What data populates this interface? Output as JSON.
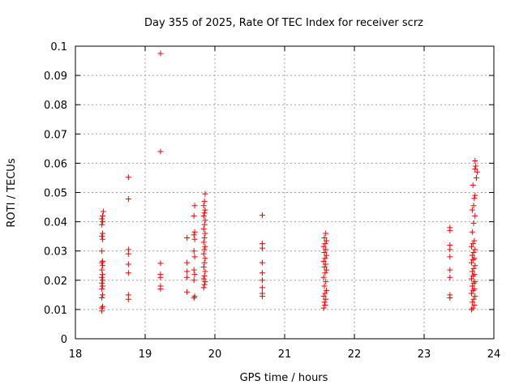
{
  "chart_data": {
    "type": "scatter",
    "title": "Day 355 of 2025, Rate Of TEC Index for receiver scrz",
    "xlabel": "GPS time / hours",
    "ylabel": "ROTI / TECUs",
    "xlim": [
      18,
      24
    ],
    "ylim": [
      0,
      0.1
    ],
    "x_ticks": [
      "18",
      "19",
      "20",
      "21",
      "22",
      "23",
      "24"
    ],
    "y_ticks": [
      "0",
      "0.01",
      "0.02",
      "0.03",
      "0.04",
      "0.05",
      "0.06",
      "0.07",
      "0.08",
      "0.09",
      "0.1"
    ],
    "grid": true,
    "marker": "plus",
    "colors": {
      "points": "#ff0000",
      "grid": "#a0a0a0",
      "axes": "#000000"
    },
    "points": [
      [
        18.38,
        0.0095
      ],
      [
        18.38,
        0.0105
      ],
      [
        18.39,
        0.011
      ],
      [
        18.38,
        0.014
      ],
      [
        18.39,
        0.015
      ],
      [
        18.38,
        0.017
      ],
      [
        18.39,
        0.018
      ],
      [
        18.38,
        0.019
      ],
      [
        18.39,
        0.02
      ],
      [
        18.38,
        0.021
      ],
      [
        18.39,
        0.022
      ],
      [
        18.38,
        0.0235
      ],
      [
        18.39,
        0.025
      ],
      [
        18.38,
        0.026
      ],
      [
        18.39,
        0.0265
      ],
      [
        18.38,
        0.03
      ],
      [
        18.39,
        0.034
      ],
      [
        18.38,
        0.035
      ],
      [
        18.39,
        0.036
      ],
      [
        18.38,
        0.039
      ],
      [
        18.39,
        0.04
      ],
      [
        18.38,
        0.041
      ],
      [
        18.39,
        0.042
      ],
      [
        18.4,
        0.0435
      ],
      [
        18.76,
        0.0135
      ],
      [
        18.76,
        0.015
      ],
      [
        18.76,
        0.0225
      ],
      [
        18.76,
        0.0255
      ],
      [
        18.76,
        0.029
      ],
      [
        18.76,
        0.0305
      ],
      [
        18.76,
        0.0478
      ],
      [
        18.76,
        0.0552
      ],
      [
        19.22,
        0.017
      ],
      [
        19.22,
        0.018
      ],
      [
        19.22,
        0.021
      ],
      [
        19.22,
        0.022
      ],
      [
        19.22,
        0.0258
      ],
      [
        19.22,
        0.064
      ],
      [
        19.22,
        0.0975
      ],
      [
        19.6,
        0.016
      ],
      [
        19.6,
        0.021
      ],
      [
        19.6,
        0.023
      ],
      [
        19.6,
        0.026
      ],
      [
        19.6,
        0.0345
      ],
      [
        19.7,
        0.014
      ],
      [
        19.71,
        0.0145
      ],
      [
        19.7,
        0.02
      ],
      [
        19.71,
        0.022
      ],
      [
        19.7,
        0.0235
      ],
      [
        19.71,
        0.028
      ],
      [
        19.7,
        0.03
      ],
      [
        19.71,
        0.034
      ],
      [
        19.7,
        0.0355
      ],
      [
        19.71,
        0.0365
      ],
      [
        19.7,
        0.042
      ],
      [
        19.71,
        0.0455
      ],
      [
        19.84,
        0.0175
      ],
      [
        19.85,
        0.0185
      ],
      [
        19.86,
        0.0195
      ],
      [
        19.84,
        0.0205
      ],
      [
        19.85,
        0.0215
      ],
      [
        19.86,
        0.023
      ],
      [
        19.84,
        0.0245
      ],
      [
        19.85,
        0.026
      ],
      [
        19.86,
        0.0275
      ],
      [
        19.84,
        0.029
      ],
      [
        19.85,
        0.0305
      ],
      [
        19.86,
        0.0315
      ],
      [
        19.84,
        0.033
      ],
      [
        19.85,
        0.0345
      ],
      [
        19.86,
        0.036
      ],
      [
        19.84,
        0.0375
      ],
      [
        19.85,
        0.039
      ],
      [
        19.86,
        0.0405
      ],
      [
        19.84,
        0.042
      ],
      [
        19.85,
        0.043
      ],
      [
        19.86,
        0.044
      ],
      [
        19.84,
        0.0455
      ],
      [
        19.85,
        0.047
      ],
      [
        19.86,
        0.0495
      ],
      [
        20.68,
        0.0145
      ],
      [
        20.68,
        0.0155
      ],
      [
        20.68,
        0.0175
      ],
      [
        20.68,
        0.02
      ],
      [
        20.68,
        0.0225
      ],
      [
        20.68,
        0.026
      ],
      [
        20.68,
        0.031
      ],
      [
        20.68,
        0.0325
      ],
      [
        20.68,
        0.0422
      ],
      [
        21.56,
        0.0105
      ],
      [
        21.58,
        0.0115
      ],
      [
        21.57,
        0.0125
      ],
      [
        21.59,
        0.0135
      ],
      [
        21.56,
        0.0145
      ],
      [
        21.58,
        0.0155
      ],
      [
        21.6,
        0.0165
      ],
      [
        21.57,
        0.018
      ],
      [
        21.59,
        0.0195
      ],
      [
        21.56,
        0.021
      ],
      [
        21.58,
        0.0225
      ],
      [
        21.6,
        0.0235
      ],
      [
        21.57,
        0.0245
      ],
      [
        21.59,
        0.0255
      ],
      [
        21.56,
        0.0265
      ],
      [
        21.58,
        0.0275
      ],
      [
        21.6,
        0.0285
      ],
      [
        21.57,
        0.0295
      ],
      [
        21.59,
        0.0305
      ],
      [
        21.56,
        0.0315
      ],
      [
        21.58,
        0.0325
      ],
      [
        21.6,
        0.0335
      ],
      [
        21.57,
        0.0345
      ],
      [
        21.59,
        0.036
      ],
      [
        23.37,
        0.014
      ],
      [
        23.37,
        0.015
      ],
      [
        23.37,
        0.021
      ],
      [
        23.37,
        0.0235
      ],
      [
        23.37,
        0.028
      ],
      [
        23.37,
        0.0305
      ],
      [
        23.37,
        0.032
      ],
      [
        23.37,
        0.037
      ],
      [
        23.37,
        0.038
      ],
      [
        23.68,
        0.01
      ],
      [
        23.7,
        0.0105
      ],
      [
        23.72,
        0.0115
      ],
      [
        23.69,
        0.0125
      ],
      [
        23.71,
        0.0135
      ],
      [
        23.73,
        0.0145
      ],
      [
        23.68,
        0.0155
      ],
      [
        23.7,
        0.0165
      ],
      [
        23.72,
        0.017
      ],
      [
        23.69,
        0.018
      ],
      [
        23.71,
        0.019
      ],
      [
        23.73,
        0.0195
      ],
      [
        23.68,
        0.0205
      ],
      [
        23.7,
        0.0215
      ],
      [
        23.72,
        0.022
      ],
      [
        23.69,
        0.023
      ],
      [
        23.71,
        0.024
      ],
      [
        23.73,
        0.025
      ],
      [
        23.68,
        0.026
      ],
      [
        23.7,
        0.027
      ],
      [
        23.72,
        0.0275
      ],
      [
        23.69,
        0.0285
      ],
      [
        23.71,
        0.0295
      ],
      [
        23.73,
        0.0305
      ],
      [
        23.68,
        0.0315
      ],
      [
        23.7,
        0.0325
      ],
      [
        23.72,
        0.0335
      ],
      [
        23.69,
        0.0365
      ],
      [
        23.71,
        0.0395
      ],
      [
        23.73,
        0.042
      ],
      [
        23.69,
        0.044
      ],
      [
        23.71,
        0.0455
      ],
      [
        23.72,
        0.048
      ],
      [
        23.73,
        0.049
      ],
      [
        23.7,
        0.0525
      ],
      [
        23.75,
        0.055
      ],
      [
        23.76,
        0.057
      ],
      [
        23.73,
        0.058
      ],
      [
        23.74,
        0.059
      ],
      [
        23.73,
        0.0608
      ]
    ]
  }
}
